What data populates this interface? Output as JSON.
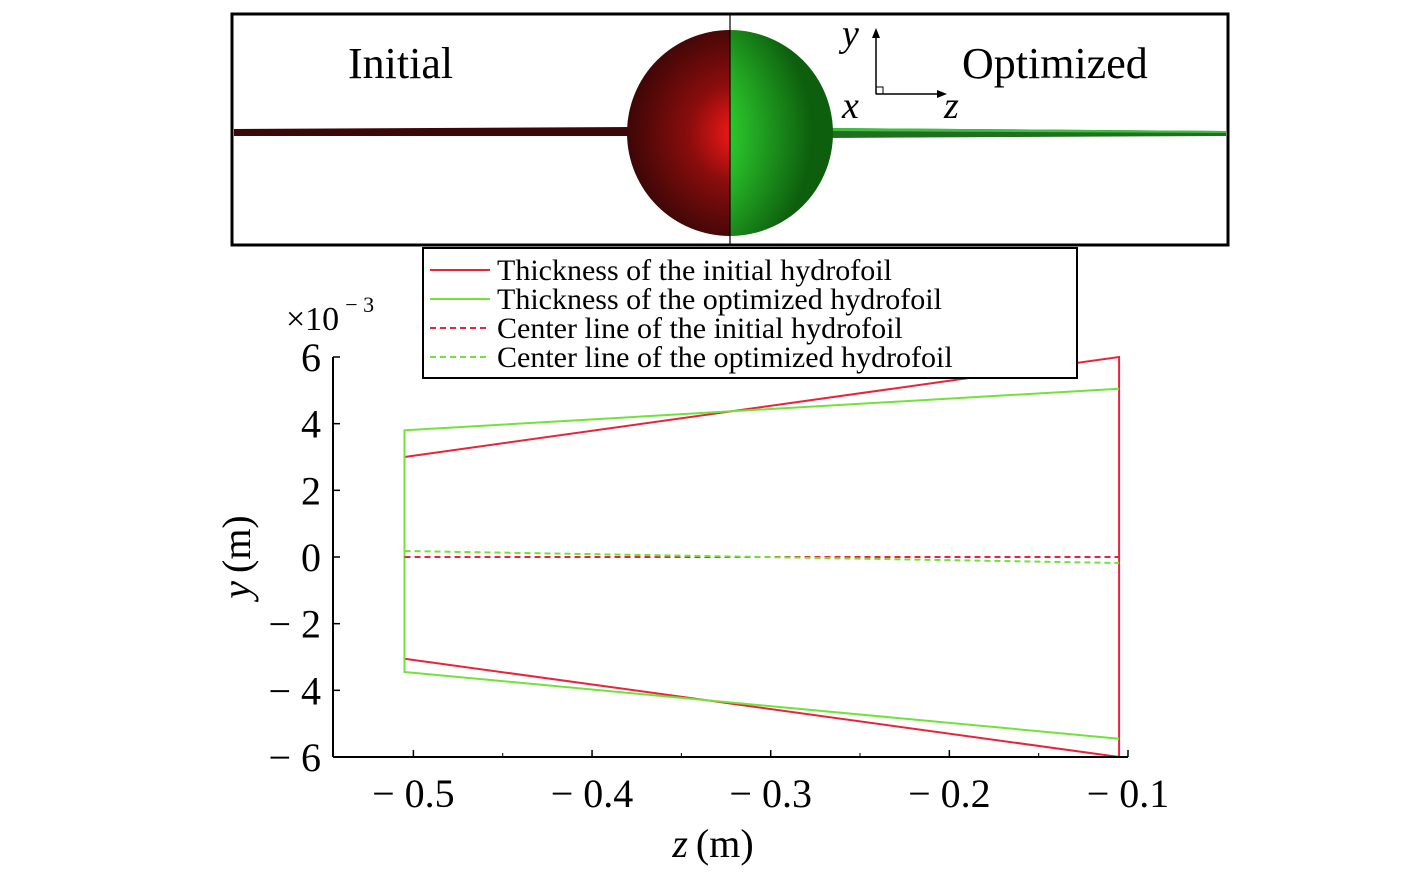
{
  "inset": {
    "left_label": "Initial",
    "right_label": "Optimized",
    "axis_y": "y",
    "axis_x": "x",
    "axis_z": "z",
    "colors": {
      "initial": "#7a0d0d",
      "optimized": "#2fbf2f"
    }
  },
  "chart_data": {
    "type": "line",
    "xlabel_var": "z",
    "xlabel_unit": "(m)",
    "ylabel_var": "y",
    "ylabel_unit": "(m)",
    "y_multiplier_base": "×10",
    "y_multiplier_exp": "− 3",
    "xlim": [
      -0.545,
      -0.1
    ],
    "ylim": [
      -6,
      6
    ],
    "x_ticks": [
      -0.5,
      -0.4,
      -0.3,
      -0.2,
      -0.1
    ],
    "x_tick_labels": [
      "− 0.5",
      "− 0.4",
      "− 0.3",
      "− 0.2",
      "− 0.1"
    ],
    "y_ticks": [
      6,
      4,
      2,
      0,
      -2,
      -4,
      -6
    ],
    "y_tick_labels": [
      "6",
      "4",
      "2",
      "0",
      "− 2",
      "− 4",
      "− 6"
    ],
    "legend_position": "top-center",
    "series": [
      {
        "name": "Thickness of the initial hydrofoil",
        "color": "#e8243c",
        "style": "solid",
        "x": [
          -0.505,
          -0.505,
          -0.105,
          -0.105,
          -0.505,
          -0.505
        ],
        "y": [
          -2.2,
          -3.05,
          -6.0,
          6.0,
          3.0,
          2.6
        ]
      },
      {
        "name": "Thickness of the optimized hydrofoil",
        "color": "#6fe33a",
        "style": "solid",
        "x": [
          -0.105,
          -0.505,
          -0.505,
          -0.105
        ],
        "y": [
          -5.45,
          -3.45,
          3.8,
          5.05
        ]
      },
      {
        "name": "Center line of the initial hydrofoil",
        "color": "#e8243c",
        "style": "dashed",
        "x": [
          -0.505,
          -0.105
        ],
        "y": [
          0.0,
          0.0
        ]
      },
      {
        "name": "Center line of the optimized hydrofoil",
        "color": "#6fe33a",
        "style": "dashed",
        "x": [
          -0.505,
          -0.105
        ],
        "y": [
          0.18,
          -0.18
        ]
      }
    ]
  }
}
